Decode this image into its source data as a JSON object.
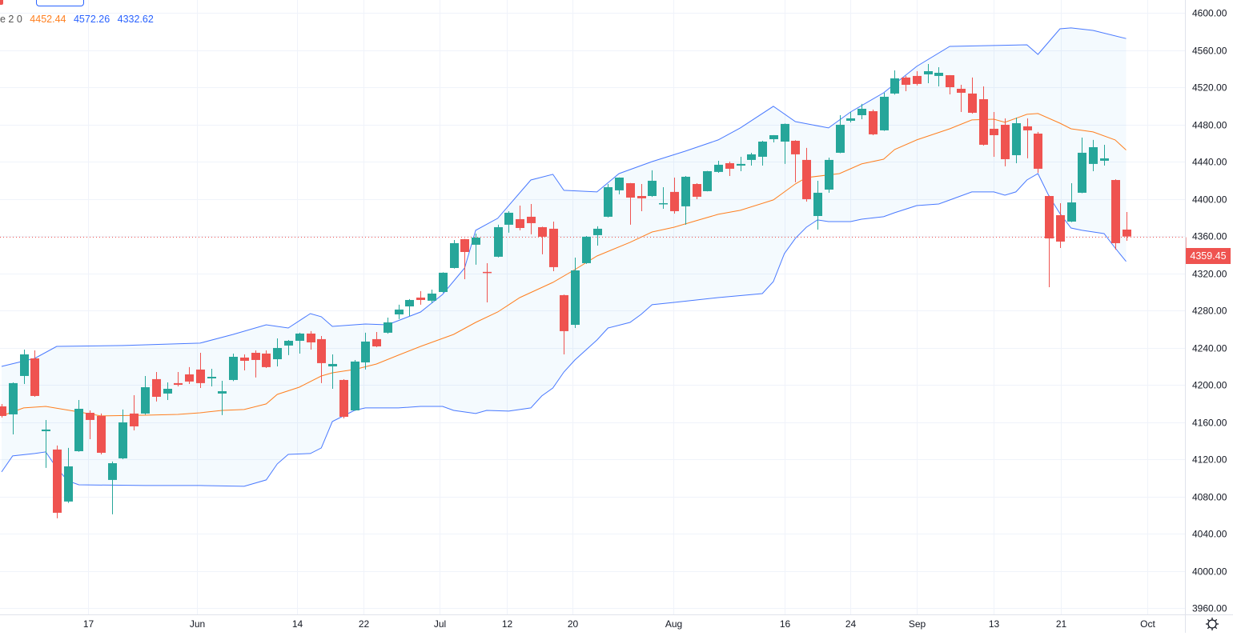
{
  "legend": {
    "label_fragment": "e 2 0",
    "basis": "4452.44",
    "upper": "4572.26",
    "lower": "4332.62"
  },
  "last_price_label": "4359.45",
  "colors": {
    "up": "#26a69a",
    "down": "#ef5350",
    "basis": "#ff7f1f",
    "band": "#2962ff",
    "band_fill": "#2196f3",
    "grid": "#f0f3fa",
    "axis_text": "#131722"
  },
  "icons": {
    "settings": "gear-icon"
  },
  "chart_data": {
    "type": "candlestick",
    "y_axis": {
      "min": 3960,
      "max": 4600,
      "step": 40,
      "ticks": [
        "4600.00",
        "4560.00",
        "4520.00",
        "4480.00",
        "4440.00",
        "4400.00",
        "4360.00",
        "4320.00",
        "4280.00",
        "4240.00",
        "4200.00",
        "4160.00",
        "4120.00",
        "4080.00",
        "4040.00",
        "4000.00",
        "3960.00"
      ],
      "position": "right"
    },
    "x_ticks": [
      {
        "label": "17",
        "index": 7.84
      },
      {
        "label": "Jun",
        "index": 17.7
      },
      {
        "label": "14",
        "index": 26.8
      },
      {
        "label": "22",
        "index": 32.8
      },
      {
        "label": "Jul",
        "index": 39.7
      },
      {
        "label": "12",
        "index": 45.8
      },
      {
        "label": "20",
        "index": 51.8
      },
      {
        "label": "Aug",
        "index": 60.9
      },
      {
        "label": "16",
        "index": 71
      },
      {
        "label": "24",
        "index": 77
      },
      {
        "label": "Sep",
        "index": 83
      },
      {
        "label": "13",
        "index": 90
      },
      {
        "label": "21",
        "index": 96.1
      },
      {
        "label": "Oct",
        "index": 103.9
      }
    ],
    "grid": true,
    "last_price": 4359.45,
    "ohlc": [
      [
        4176.8,
        4179.4,
        4164.8,
        4166.5
      ],
      [
        4168.2,
        4202.6,
        4146.7,
        4201.8
      ],
      [
        4209.5,
        4237.9,
        4200.9,
        4232.7
      ],
      [
        4228.4,
        4237.0,
        4187.1,
        4188.0
      ],
      [
        4150.1,
        4162.2,
        4110.6,
        4151.9
      ],
      [
        4130.4,
        4134.7,
        4056.4,
        4062.4
      ],
      [
        4074.5,
        4132.1,
        4073.0,
        4112.3
      ],
      [
        4128.6,
        4183.7,
        4128.0,
        4174.2
      ],
      [
        4169.9,
        4172.5,
        4141.5,
        4162.2
      ],
      [
        4166.5,
        4169.1,
        4125.2,
        4126.9
      ],
      [
        4097.7,
        4117.5,
        4060.7,
        4115.7
      ],
      [
        4120.9,
        4173.4,
        4120.0,
        4159.6
      ],
      [
        4169.1,
        4188.8,
        4151.0,
        4155.3
      ],
      [
        4169.1,
        4209.5,
        4168.0,
        4197.4
      ],
      [
        4206.1,
        4213.8,
        4182.0,
        4187.1
      ],
      [
        4190.6,
        4202.6,
        4183.7,
        4195.7
      ],
      [
        4201.8,
        4213.8,
        4198.3,
        4200.0
      ],
      [
        4211.2,
        4219.0,
        4200.9,
        4203.5
      ],
      [
        4216.4,
        4234.4,
        4196.6,
        4201.8
      ],
      [
        4206.9,
        4217.2,
        4198.3,
        4208.6
      ],
      [
        4190.6,
        4204.3,
        4167.4,
        4193.1
      ],
      [
        4205.2,
        4233.6,
        4204.0,
        4230.1
      ],
      [
        4229.3,
        4232.7,
        4215.5,
        4225.8
      ],
      [
        4234.4,
        4237.0,
        4207.8,
        4226.7
      ],
      [
        4233.6,
        4237.0,
        4218.1,
        4219.0
      ],
      [
        4227.5,
        4249.9,
        4219.8,
        4239.6
      ],
      [
        4242.2,
        4248.2,
        4231.9,
        4247.3
      ],
      [
        4247.3,
        4256.0,
        4233.6,
        4255.1
      ],
      [
        4255.1,
        4257.7,
        4237.9,
        4245.6
      ],
      [
        4249.1,
        4252.5,
        4201.8,
        4223.3
      ],
      [
        4219.8,
        4232.7,
        4195.7,
        4222.4
      ],
      [
        4205.2,
        4206.0,
        4163.9,
        4165.6
      ],
      [
        4172.5,
        4226.7,
        4172.0,
        4225.0
      ],
      [
        4224.1,
        4256.0,
        4216.4,
        4246.5
      ],
      [
        4249.1,
        4256.8,
        4240.5,
        4241.3
      ],
      [
        4256.0,
        4272.3,
        4255.0,
        4267.1
      ],
      [
        4275.7,
        4286.1,
        4270.6,
        4280.9
      ],
      [
        4284.3,
        4292.1,
        4274.0,
        4291.2
      ],
      [
        4293.8,
        4300.7,
        4286.1,
        4291.2
      ],
      [
        4290.4,
        4302.4,
        4287.8,
        4298.1
      ],
      [
        4299.8,
        4321.0,
        4299.0,
        4320.5
      ],
      [
        4325.6,
        4355.7,
        4325.0,
        4352.3
      ],
      [
        4356.6,
        4357.0,
        4313.6,
        4342.8
      ],
      [
        4350.6,
        4362.6,
        4329.1,
        4358.3
      ],
      [
        4321.4,
        4330.8,
        4288.6,
        4321.0
      ],
      [
        4337.7,
        4372.1,
        4337.0,
        4369.5
      ],
      [
        4372.1,
        4386.7,
        4363.5,
        4385.0
      ],
      [
        4378.1,
        4392.7,
        4366.1,
        4368.6
      ],
      [
        4380.7,
        4394.4,
        4361.8,
        4373.8
      ],
      [
        4369.5,
        4370.0,
        4340.3,
        4359.2
      ],
      [
        4367.8,
        4375.5,
        4322.2,
        4326.5
      ],
      [
        4296.4,
        4297.0,
        4232.7,
        4257.7
      ],
      [
        4264.5,
        4336.8,
        4261.1,
        4323.0
      ],
      [
        4330.8,
        4360.0,
        4330.0,
        4359.2
      ],
      [
        4360.9,
        4370.4,
        4349.7,
        4367.8
      ],
      [
        4380.7,
        4415.9,
        4380.0,
        4412.5
      ],
      [
        4409.1,
        4423.0,
        4404.8,
        4422.8
      ],
      [
        4416.8,
        4417.0,
        4372.1,
        4401.3
      ],
      [
        4403.0,
        4415.9,
        4386.7,
        4400.5
      ],
      [
        4403.0,
        4430.6,
        4402.0,
        4419.4
      ],
      [
        4394.4,
        4412.5,
        4389.3,
        4395.3
      ],
      [
        4407.4,
        4422.8,
        4384.1,
        4386.7
      ],
      [
        4391.9,
        4424.5,
        4372.1,
        4423.7
      ],
      [
        4415.9,
        4416.8,
        4399.6,
        4402.2
      ],
      [
        4408.2,
        4430.0,
        4408.0,
        4429.7
      ],
      [
        4428.9,
        4440.9,
        4428.0,
        4436.6
      ],
      [
        4438.3,
        4440.0,
        4424.5,
        4432.3
      ],
      [
        4435.7,
        4445.2,
        4429.7,
        4437.5
      ],
      [
        4441.8,
        4449.5,
        4435.7,
        4447.8
      ],
      [
        4445.2,
        4462.4,
        4435.7,
        4461.5
      ],
      [
        4464.1,
        4468.5,
        4460.6,
        4468.4
      ],
      [
        4461.5,
        4481.0,
        4437.5,
        4480.5
      ],
      [
        4462.4,
        4463.0,
        4417.7,
        4447.8
      ],
      [
        4441.8,
        4454.7,
        4397.0,
        4399.6
      ],
      [
        4381.5,
        4419.4,
        4366.9,
        4406.5
      ],
      [
        4409.9,
        4444.3,
        4406.5,
        4441.8
      ],
      [
        4449.5,
        4489.9,
        4449.0,
        4479.6
      ],
      [
        4483.9,
        4493.3,
        4482.2,
        4486.5
      ],
      [
        4489.9,
        4502.0,
        4485.6,
        4496.8
      ],
      [
        4494.2,
        4495.9,
        4468.4,
        4469.3
      ],
      [
        4473.6,
        4514.0,
        4473.0,
        4509.7
      ],
      [
        4513.2,
        4538.1,
        4512.0,
        4529.5
      ],
      [
        4530.4,
        4532.1,
        4515.7,
        4522.6
      ],
      [
        4532.1,
        4537.2,
        4521.8,
        4523.5
      ],
      [
        4533.8,
        4545.0,
        4524.3,
        4537.2
      ],
      [
        4532.1,
        4541.5,
        4520.9,
        4535.5
      ],
      [
        4532.9,
        4533.0,
        4512.3,
        4520.0
      ],
      [
        4518.3,
        4522.6,
        4493.3,
        4514.0
      ],
      [
        4513.2,
        4530.4,
        4491.6,
        4492.5
      ],
      [
        4507.1,
        4520.9,
        4457.2,
        4458.1
      ],
      [
        4475.3,
        4493.3,
        4445.2,
        4468.4
      ],
      [
        4479.6,
        4486.5,
        4434.9,
        4442.6
      ],
      [
        4446.9,
        4487.3,
        4438.3,
        4481.3
      ],
      [
        4477.9,
        4486.5,
        4443.5,
        4473.6
      ],
      [
        4470.1,
        4471.9,
        4428.0,
        4432.3
      ],
      [
        4403.0,
        4403.5,
        4305.0,
        4357.4
      ],
      [
        4382.4,
        4395.3,
        4347.1,
        4354.0
      ],
      [
        4375.5,
        4416.8,
        4375.0,
        4396.1
      ],
      [
        4406.5,
        4465.8,
        4406.0,
        4449.5
      ],
      [
        4437.5,
        4463.3,
        4429.7,
        4455.5
      ],
      [
        4440.9,
        4458.1,
        4435.7,
        4443.5
      ],
      [
        4420.2,
        4421.0,
        4345.4,
        4352.3
      ],
      [
        4366.9,
        4385.8,
        4354.8,
        4359.45
      ]
    ],
    "bollinger": {
      "basis": [
        [
          0,
          4166.5
        ],
        [
          2,
          4175.1
        ],
        [
          4,
          4176.8
        ],
        [
          7,
          4170.8
        ],
        [
          9,
          4166.5
        ],
        [
          13,
          4167.3
        ],
        [
          16,
          4168.2
        ],
        [
          18,
          4169.9
        ],
        [
          20,
          4172.5
        ],
        [
          22,
          4173.4
        ],
        [
          24,
          4179.4
        ],
        [
          25,
          4189.7
        ],
        [
          27,
          4197.4
        ],
        [
          29,
          4209.5
        ],
        [
          30,
          4212.9
        ],
        [
          32,
          4216.4
        ],
        [
          34,
          4222.4
        ],
        [
          36,
          4231.9
        ],
        [
          38,
          4241.3
        ],
        [
          41,
          4254.2
        ],
        [
          43,
          4267.1
        ],
        [
          45,
          4278.3
        ],
        [
          47,
          4293.8
        ],
        [
          50,
          4310.1
        ],
        [
          52,
          4323.9
        ],
        [
          54,
          4338.5
        ],
        [
          57,
          4353.2
        ],
        [
          59,
          4364.3
        ],
        [
          61,
          4369.5
        ],
        [
          63,
          4376.4
        ],
        [
          65,
          4383.3
        ],
        [
          67,
          4387.6
        ],
        [
          70,
          4398.8
        ],
        [
          71,
          4407.4
        ],
        [
          72,
          4416.0
        ],
        [
          73,
          4422.8
        ],
        [
          76,
          4427.1
        ],
        [
          78,
          4437.5
        ],
        [
          80,
          4442.6
        ],
        [
          81,
          4453.0
        ],
        [
          83,
          4463.3
        ],
        [
          86,
          4475.3
        ],
        [
          88,
          4484.8
        ],
        [
          90,
          4485.6
        ],
        [
          91,
          4482.2
        ],
        [
          93,
          4490.8
        ],
        [
          94,
          4491.7
        ],
        [
          96,
          4481.3
        ],
        [
          97,
          4475.3
        ],
        [
          99,
          4471.9
        ],
        [
          101,
          4463.3
        ],
        [
          102,
          4452.44
        ]
      ],
      "upper": [
        [
          0,
          4219.8
        ],
        [
          3,
          4228.4
        ],
        [
          5,
          4241.3
        ],
        [
          11,
          4242.2
        ],
        [
          18,
          4244.8
        ],
        [
          21,
          4254.2
        ],
        [
          24,
          4264.5
        ],
        [
          26,
          4261.1
        ],
        [
          28,
          4276.6
        ],
        [
          29,
          4273.2
        ],
        [
          30,
          4262.8
        ],
        [
          33,
          4265.4
        ],
        [
          35,
          4264.5
        ],
        [
          38,
          4278.3
        ],
        [
          40,
          4297.2
        ],
        [
          42,
          4325.6
        ],
        [
          43,
          4366.1
        ],
        [
          45,
          4379.0
        ],
        [
          48,
          4420.2
        ],
        [
          50,
          4426.3
        ],
        [
          51,
          4409.1
        ],
        [
          54,
          4407.4
        ],
        [
          56,
          4427.1
        ],
        [
          59,
          4440.0
        ],
        [
          62,
          4451.2
        ],
        [
          65,
          4463.3
        ],
        [
          67,
          4476.2
        ],
        [
          70,
          4499.4
        ],
        [
          72,
          4483.0
        ],
        [
          75,
          4476.2
        ],
        [
          77,
          4493.3
        ],
        [
          80,
          4514.0
        ],
        [
          83,
          4542.4
        ],
        [
          86,
          4563.9
        ],
        [
          93,
          4565.6
        ],
        [
          94,
          4555.3
        ],
        [
          96,
          4582.8
        ],
        [
          97,
          4583.7
        ],
        [
          99,
          4581.1
        ],
        [
          102,
          4572.26
        ]
      ],
      "lower": [
        [
          0,
          4106.3
        ],
        [
          1,
          4123.5
        ],
        [
          3,
          4126.1
        ],
        [
          4,
          4127.8
        ],
        [
          5,
          4110.6
        ],
        [
          6,
          4096.8
        ],
        [
          7,
          4092.5
        ],
        [
          13,
          4091.7
        ],
        [
          18,
          4091.7
        ],
        [
          22,
          4090.8
        ],
        [
          24,
          4097.7
        ],
        [
          25,
          4114.9
        ],
        [
          26,
          4125.2
        ],
        [
          28,
          4126.1
        ],
        [
          29,
          4132.1
        ],
        [
          30,
          4160.5
        ],
        [
          32,
          4172.5
        ],
        [
          33,
          4175.1
        ],
        [
          36,
          4175.1
        ],
        [
          38,
          4176.8
        ],
        [
          40,
          4176.8
        ],
        [
          41,
          4172.5
        ],
        [
          43,
          4169.1
        ],
        [
          44,
          4172.5
        ],
        [
          46,
          4171.7
        ],
        [
          48,
          4175.1
        ],
        [
          49,
          4188.0
        ],
        [
          50,
          4196.6
        ],
        [
          51,
          4213.8
        ],
        [
          52,
          4226.7
        ],
        [
          54,
          4248.2
        ],
        [
          55,
          4261.1
        ],
        [
          57,
          4267.1
        ],
        [
          58,
          4275.7
        ],
        [
          59,
          4286.1
        ],
        [
          61,
          4288.6
        ],
        [
          63,
          4291.2
        ],
        [
          65,
          4293.8
        ],
        [
          69,
          4298.1
        ],
        [
          70,
          4311.0
        ],
        [
          71,
          4341.1
        ],
        [
          72,
          4357.5
        ],
        [
          73,
          4369.5
        ],
        [
          74,
          4377.3
        ],
        [
          75,
          4375.5
        ],
        [
          77,
          4375.5
        ],
        [
          78,
          4378.1
        ],
        [
          80,
          4380.7
        ],
        [
          81,
          4385.0
        ],
        [
          83,
          4392.7
        ],
        [
          85,
          4394.4
        ],
        [
          86,
          4398.7
        ],
        [
          88,
          4407.4
        ],
        [
          90,
          4407.4
        ],
        [
          91,
          4403.9
        ],
        [
          92,
          4407.4
        ],
        [
          93,
          4420.2
        ],
        [
          94,
          4427.1
        ],
        [
          95,
          4403.0
        ],
        [
          96,
          4384.1
        ],
        [
          97,
          4368.6
        ],
        [
          98,
          4366.1
        ],
        [
          100,
          4362.6
        ],
        [
          101,
          4347.1
        ],
        [
          102,
          4332.62
        ]
      ]
    }
  }
}
